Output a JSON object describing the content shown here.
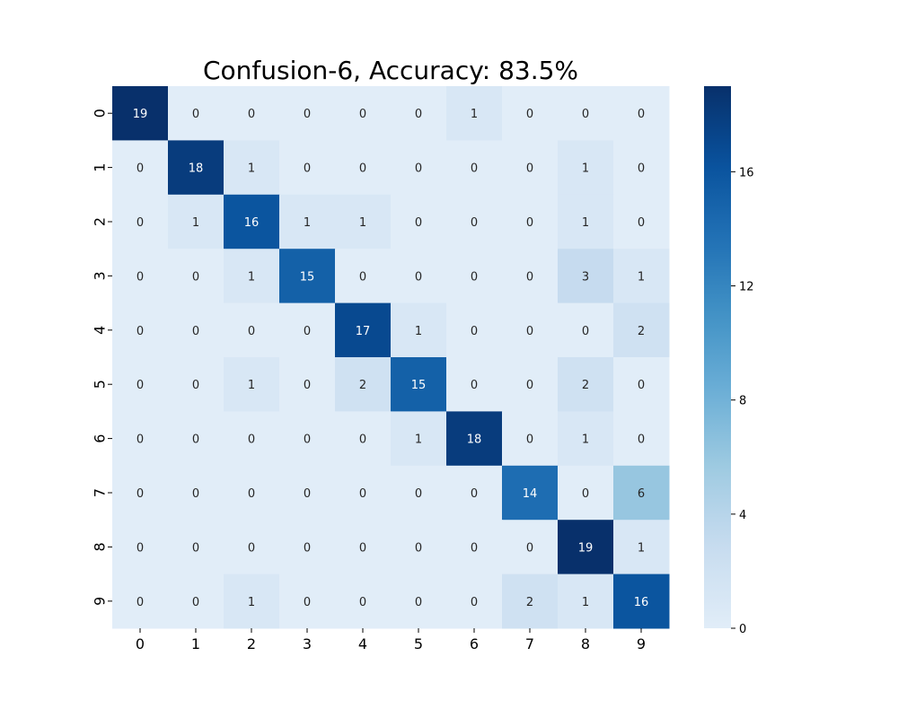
{
  "chart_data": {
    "type": "heatmap",
    "title": "Confusion-6, Accuracy: 83.5%",
    "xlabel": "",
    "ylabel": "",
    "x_categories": [
      "0",
      "1",
      "2",
      "3",
      "4",
      "5",
      "6",
      "7",
      "8",
      "9"
    ],
    "y_categories": [
      "0",
      "1",
      "2",
      "3",
      "4",
      "5",
      "6",
      "7",
      "8",
      "9"
    ],
    "values": [
      [
        19,
        0,
        0,
        0,
        0,
        0,
        1,
        0,
        0,
        0
      ],
      [
        0,
        18,
        1,
        0,
        0,
        0,
        0,
        0,
        1,
        0
      ],
      [
        0,
        1,
        16,
        1,
        1,
        0,
        0,
        0,
        1,
        0
      ],
      [
        0,
        0,
        1,
        15,
        0,
        0,
        0,
        0,
        3,
        1
      ],
      [
        0,
        0,
        0,
        0,
        17,
        1,
        0,
        0,
        0,
        2
      ],
      [
        0,
        0,
        1,
        0,
        2,
        15,
        0,
        0,
        2,
        0
      ],
      [
        0,
        0,
        0,
        0,
        0,
        1,
        18,
        0,
        1,
        0
      ],
      [
        0,
        0,
        0,
        0,
        0,
        0,
        0,
        14,
        0,
        6
      ],
      [
        0,
        0,
        0,
        0,
        0,
        0,
        0,
        0,
        19,
        1
      ],
      [
        0,
        0,
        1,
        0,
        0,
        0,
        0,
        2,
        1,
        16
      ]
    ],
    "colormap": "Blues",
    "color_range": [
      0,
      19
    ],
    "colorbar_ticks": [
      "0",
      "4",
      "8",
      "12",
      "16"
    ],
    "annotations": true,
    "grid": false
  }
}
